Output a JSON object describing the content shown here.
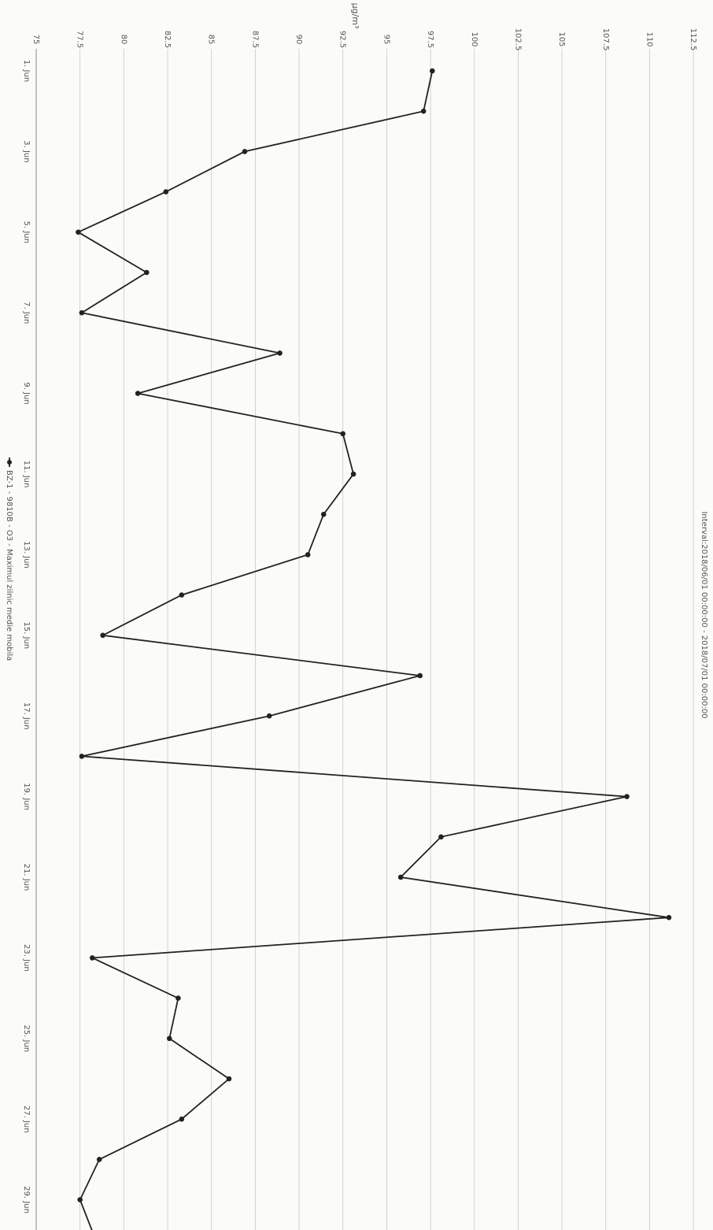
{
  "chart_data": {
    "type": "line",
    "title": "",
    "subtitle": "Interval:2018/06/01 00:00:00 - 2018/07/01 00:00:00",
    "ylabel": "µg/m³",
    "xlabel": "",
    "ylim": [
      75,
      112.5
    ],
    "y_ticks": [
      "75",
      "77.5",
      "80",
      "82.5",
      "85",
      "87.5",
      "90",
      "92.5",
      "95",
      "97.5",
      "100",
      "102.5",
      "105",
      "107.5",
      "110",
      "112.5"
    ],
    "x_ticks": [
      "1. Jun",
      "3. Jun",
      "5. Jun",
      "7. Jun",
      "9. Jun",
      "11. Jun",
      "13. Jun",
      "15. Jun",
      "17. Jun",
      "19. Jun",
      "21. Jun",
      "23. Jun",
      "25. Jun",
      "27. Jun",
      "29. Jun"
    ],
    "grid": true,
    "legend_position": "bottom",
    "series": [
      {
        "name": "BZ-1 - 9810B - O3 - Maximul zilnic medie mobila",
        "color": "#222222",
        "x": [
          "1. Jun",
          "2. Jun",
          "3. Jun",
          "4. Jun",
          "5. Jun",
          "6. Jun",
          "7. Jun",
          "8. Jun",
          "9. Jun",
          "10. Jun",
          "11. Jun",
          "12. Jun",
          "13. Jun",
          "14. Jun",
          "15. Jun",
          "16. Jun",
          "17. Jun",
          "18. Jun",
          "19. Jun",
          "20. Jun",
          "21. Jun",
          "22. Jun",
          "23. Jun",
          "24. Jun",
          "25. Jun",
          "26. Jun",
          "27. Jun",
          "28. Jun",
          "29. Jun",
          "30. Jun"
        ],
        "values": [
          97.6,
          97.1,
          86.9,
          82.4,
          77.4,
          81.3,
          77.6,
          88.9,
          80.8,
          92.5,
          93.1,
          91.4,
          90.5,
          83.3,
          78.8,
          96.9,
          88.3,
          77.6,
          108.7,
          98.1,
          95.8,
          111.1,
          78.2,
          83.1,
          82.6,
          86.0,
          83.3,
          78.6,
          77.5,
          78.4
        ]
      }
    ]
  }
}
